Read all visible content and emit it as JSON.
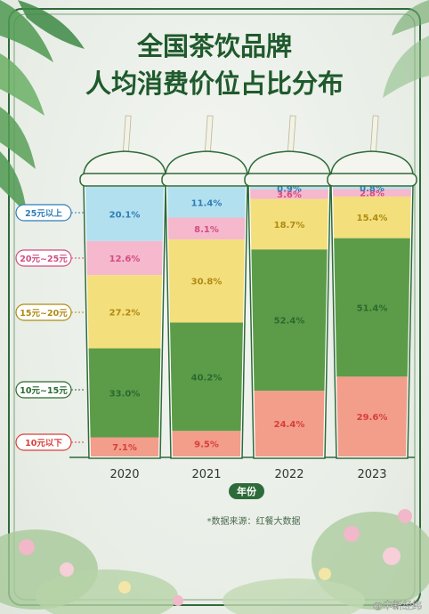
{
  "title_line1": "全国茶饮品牌",
  "title_line2": "人均消费价位占比分布",
  "source_note": "*数据来源：红餐大数据",
  "watermark": "@中新经纬",
  "xlabel": "年份",
  "colors": {
    "border": "#2e6b3a",
    "cup_lid": "#f5f5ef",
    "straw": "#f3f2e4"
  },
  "chart_data": {
    "type": "bar",
    "stacked": true,
    "orientation": "vertical",
    "categories": [
      "2020",
      "2021",
      "2022",
      "2023"
    ],
    "series": [
      {
        "name": "10元以下",
        "color": "#f39d8b",
        "label_color": "#d6403a",
        "values": [
          7.1,
          9.5,
          24.4,
          29.6
        ]
      },
      {
        "name": "10元~15元",
        "color": "#5c9c48",
        "label_color": "#2a6a30",
        "values": [
          33.0,
          40.2,
          52.4,
          51.4
        ]
      },
      {
        "name": "15元~20元",
        "color": "#f3df7c",
        "label_color": "#b08a12",
        "values": [
          27.2,
          30.8,
          18.7,
          15.4
        ]
      },
      {
        "name": "20元~25元",
        "color": "#f5b8cc",
        "label_color": "#d34d80",
        "values": [
          12.6,
          8.1,
          3.6,
          2.8
        ]
      },
      {
        "name": "25元以上",
        "color": "#b3e0ef",
        "label_color": "#2f7eb6",
        "values": [
          20.1,
          11.4,
          0.9,
          0.8
        ]
      }
    ],
    "value_labels": [
      [
        "7.1%",
        "33.0%",
        "27.2%",
        "12.6%",
        "20.1%"
      ],
      [
        "9.5%",
        "40.2%",
        "30.8%",
        "8.1%",
        "11.4%"
      ],
      [
        "24.4%",
        "52.4%",
        "18.7%",
        "3.6%",
        "0.9%"
      ],
      [
        "29.6%",
        "51.4%",
        "15.4%",
        "2.8%",
        "0.8%"
      ]
    ],
    "ylim": [
      0,
      100
    ],
    "legend_position": "left"
  }
}
